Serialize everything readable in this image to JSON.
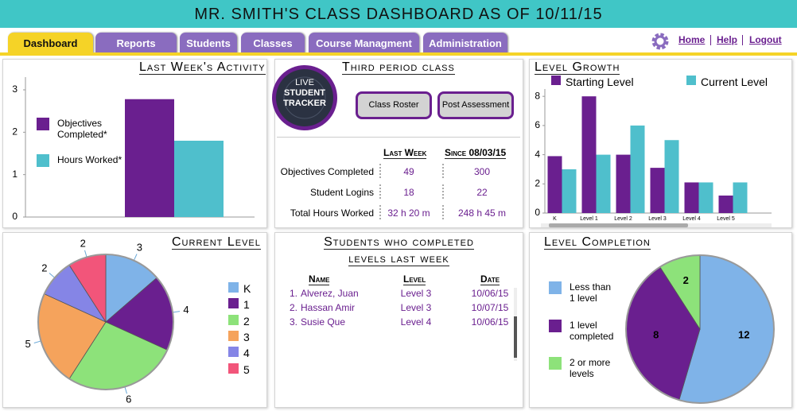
{
  "header": {
    "title": "MR. SMITH'S CLASS DASHBOARD AS OF 10/11/15"
  },
  "tabs": [
    "Dashboard",
    "Reports",
    "Students",
    "Classes",
    "Course Managment",
    "Administration"
  ],
  "nav": [
    "Home",
    "Help",
    "Logout"
  ],
  "class_panel": {
    "title": "Third period class",
    "logo": [
      "LIVE",
      "STUDENT",
      "TRACKER"
    ],
    "buttons": [
      "Class Roster",
      "Post Assessment"
    ],
    "columns": [
      "Last Week",
      "Since 08/03/15"
    ],
    "rows": [
      {
        "label": "Objectives Completed",
        "values": [
          49,
          300
        ]
      },
      {
        "label": "Student Logins",
        "values": [
          18,
          22
        ]
      },
      {
        "label": "Total Hours Worked",
        "values": [
          "32 h 20 m",
          "248 h 45 m"
        ]
      }
    ]
  },
  "completions": {
    "title_lines": [
      "Students who completed",
      "levels last week"
    ],
    "columns": [
      "Name",
      "Level",
      "Date"
    ],
    "rows": [
      [
        "1.",
        "Alverez, Juan",
        "Level 3",
        "10/06/15"
      ],
      [
        "2.",
        "Hassan Amir",
        "Level 3",
        "10/07/15"
      ],
      [
        "3.",
        "Susie Que",
        "Level 4",
        "10/06/15"
      ]
    ]
  },
  "chart_data": [
    {
      "type": "bar",
      "title": "Last Week's Activity",
      "categories": [
        null
      ],
      "series": [
        {
          "name": "Objectives Completed*",
          "color": "#6a1f8f",
          "values": [
            2.78
          ]
        },
        {
          "name": "Hours Worked*",
          "color": "#4fbfcc",
          "values": [
            1.8
          ]
        }
      ],
      "ylim": [
        0,
        3.3
      ],
      "yticks": [
        0,
        1,
        2,
        3
      ],
      "legend": "left"
    },
    {
      "type": "bar",
      "title": "Level Growth",
      "categories": [
        "K",
        "Level 1",
        "Level 2",
        "Level 3",
        "Level 4",
        "Level 5"
      ],
      "series": [
        {
          "name": "Starting Level",
          "color": "#6a1f8f",
          "values": [
            3.9,
            8,
            4,
            3.1,
            2.1,
            1.2
          ]
        },
        {
          "name": "Current Level",
          "color": "#4fbfcc",
          "values": [
            3,
            4,
            6,
            5,
            2.1,
            2.1
          ]
        }
      ],
      "ylim": [
        0,
        8.5
      ],
      "yticks": [
        0,
        2,
        4,
        6,
        8
      ],
      "legend": "top"
    },
    {
      "type": "pie",
      "title": "Current Level",
      "categories": [
        "K",
        "1",
        "2",
        "3",
        "4",
        "5"
      ],
      "values": [
        3,
        4,
        6,
        5,
        2,
        2
      ],
      "colors": [
        "#7fb3e8",
        "#6a1f8f",
        "#8de27a",
        "#f5a35c",
        "#8585e6",
        "#f2557a"
      ],
      "legend": "right"
    },
    {
      "type": "pie",
      "title": "Level Completion",
      "categories": [
        "Less than 1 level",
        "1 level completed",
        "2 or more levels"
      ],
      "values": [
        12,
        8,
        2
      ],
      "colors": [
        "#7fb3e8",
        "#6a1f8f",
        "#8de27a"
      ],
      "legend": "left"
    }
  ]
}
